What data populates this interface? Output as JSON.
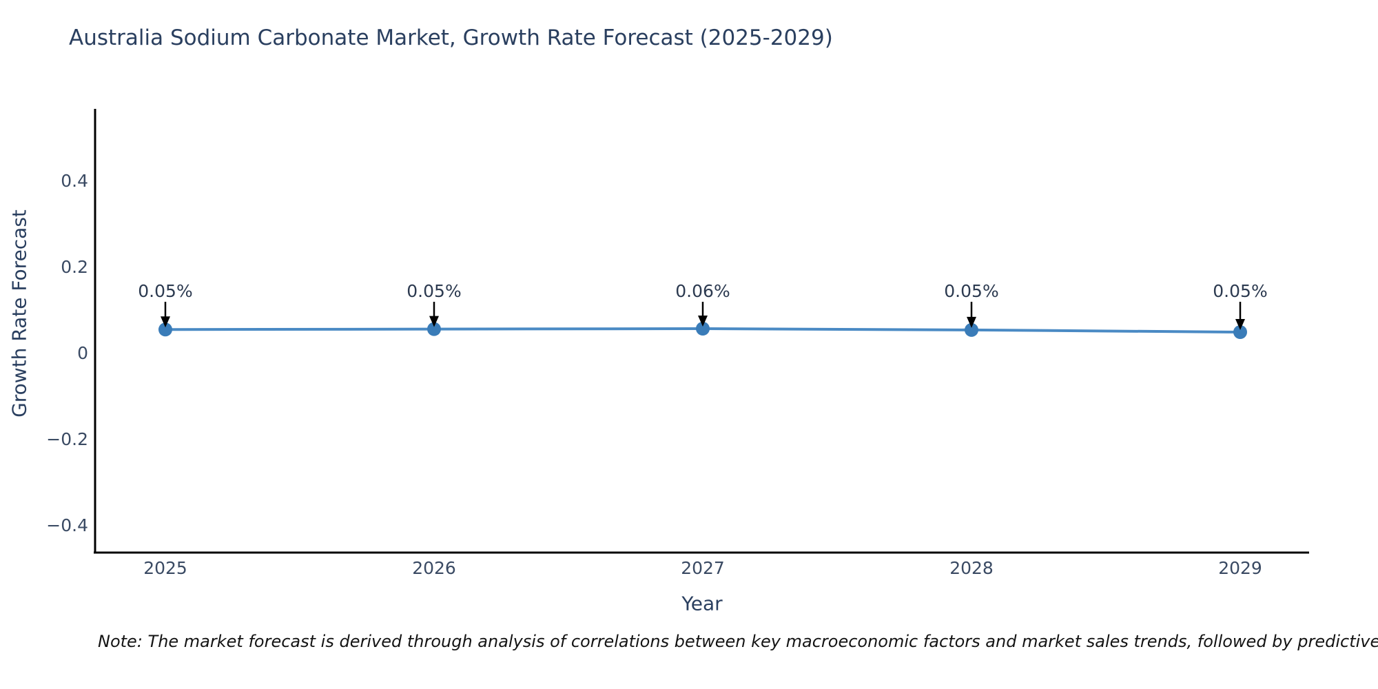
{
  "page": {
    "background": "#ffffff"
  },
  "header": {
    "title": "Australia Sodium Carbonate Market, Growth Rate Forecast (2025-2029)"
  },
  "chart_data": {
    "type": "line",
    "title": "Australia Sodium Carbonate Market, Growth Rate Forecast (2025-2029)",
    "xlabel": "Year",
    "ylabel": "Growth Rate Forecast",
    "categories": [
      "2025",
      "2026",
      "2027",
      "2028",
      "2029"
    ],
    "series": [
      {
        "name": "Growth Rate Forecast",
        "values": [
          0.054,
          0.055,
          0.056,
          0.053,
          0.048
        ],
        "point_labels": [
          "0.05%",
          "0.05%",
          "0.06%",
          "0.05%",
          "0.05%"
        ]
      }
    ],
    "y_ticks": [
      0.4,
      0.2,
      0,
      -0.2,
      -0.4
    ],
    "y_tick_labels": [
      "0.4",
      "0.2",
      "0",
      "−0.2",
      "−0.4"
    ],
    "ylim": [
      -0.46,
      0.57
    ],
    "grid": false,
    "legend": false,
    "annotation_style": "value label with downward black arrow to each marker",
    "colors": {
      "line": "#4a8ac4",
      "marker": "#3a7cb8",
      "arrow": "#000000",
      "axis": "#000000",
      "title_text": "#2a3f5f",
      "tick_text": "#3a4a63",
      "annotation_text": "#2c3a50",
      "note_text": "#141414"
    }
  },
  "footnote": {
    "text": "Note: The market forecast is derived through analysis of correlations between key macroeconomic factors and market sales trends, followed by predictive modeling to project future sa"
  }
}
